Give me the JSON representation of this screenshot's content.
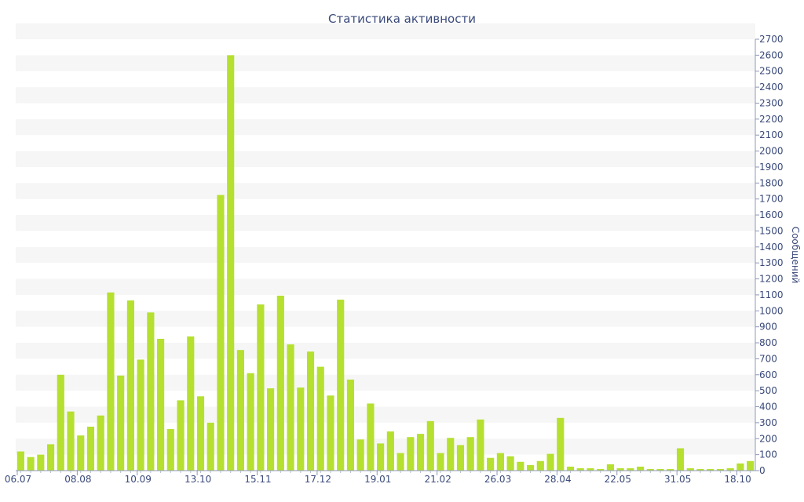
{
  "chart_data": {
    "type": "bar",
    "title": "Статистика активности",
    "xlabel": "",
    "ylabel": "Сообщений",
    "ylim": [
      0,
      2700
    ],
    "y_ticks": [
      0,
      100,
      200,
      300,
      400,
      500,
      600,
      700,
      800,
      900,
      1000,
      1100,
      1200,
      1300,
      1400,
      1500,
      1600,
      1700,
      1800,
      1900,
      2000,
      2100,
      2200,
      2300,
      2400,
      2500,
      2600,
      2700
    ],
    "y_axis_side": "right",
    "grid": "alternating horizontal bands",
    "x_tick_labels": [
      "06.07",
      "08.08",
      "10.09",
      "13.10",
      "15.11",
      "17.12",
      "19.01",
      "21.02",
      "26.03",
      "28.04",
      "22.05",
      "31.05",
      "18.10"
    ],
    "x_tick_positions": [
      0,
      6,
      12,
      18,
      24,
      30,
      36,
      42,
      48,
      54,
      60,
      66,
      72
    ],
    "bar_color": "#b5e02f",
    "values": [
      120,
      85,
      100,
      165,
      600,
      370,
      220,
      275,
      345,
      1115,
      595,
      1065,
      695,
      990,
      825,
      260,
      440,
      840,
      465,
      300,
      1725,
      2600,
      755,
      610,
      1040,
      515,
      1095,
      790,
      520,
      745,
      650,
      470,
      1070,
      570,
      195,
      420,
      170,
      245,
      110,
      210,
      230,
      310,
      110,
      205,
      160,
      210,
      320,
      80,
      110,
      90,
      55,
      35,
      60,
      105,
      330,
      25,
      15,
      15,
      10,
      40,
      15,
      15,
      25,
      10,
      10,
      10,
      140,
      15,
      10,
      10,
      10,
      15,
      45,
      60
    ]
  }
}
